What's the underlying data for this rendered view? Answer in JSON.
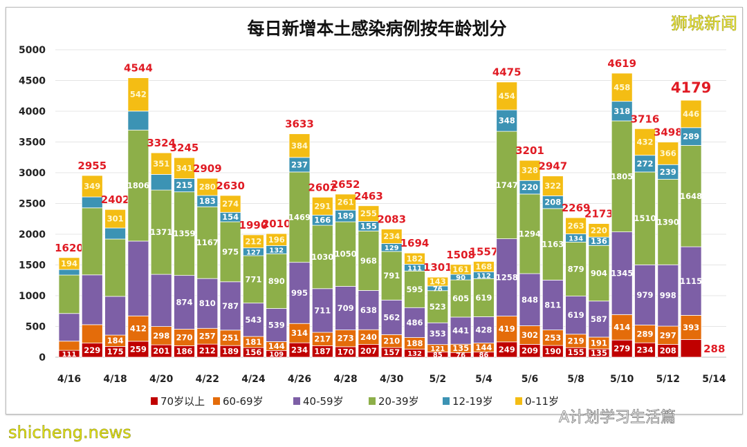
{
  "chart_data": {
    "type": "bar",
    "stacked": true,
    "title": "每日新增本土感染病例按年龄划分",
    "xlabel": "",
    "ylabel": "",
    "ylim": [
      0,
      5000
    ],
    "yticks": [
      0,
      500,
      1000,
      1500,
      2000,
      2500,
      3000,
      3500,
      4000,
      4500,
      5000
    ],
    "grid": true,
    "legend_position": "bottom",
    "categories": [
      "4/16",
      "4/17",
      "4/18",
      "4/19",
      "4/20",
      "4/21",
      "4/22",
      "4/23",
      "4/24",
      "4/25",
      "4/26",
      "4/27",
      "4/28",
      "4/29",
      "4/30",
      "5/1",
      "5/2",
      "5/3",
      "5/4",
      "5/5",
      "5/6",
      "5/7",
      "5/8",
      "5/9",
      "5/10",
      "5/11",
      "5/12",
      "5/13",
      "5/14"
    ],
    "tick_labels": [
      "4/16",
      "4/18",
      "4/20",
      "4/22",
      "4/24",
      "4/26",
      "4/28",
      "4/30",
      "5/2",
      "5/4",
      "5/6",
      "5/8",
      "5/10",
      "5/12",
      "5/14"
    ],
    "totals": [
      1620,
      2955,
      2402,
      4544,
      3324,
      3245,
      2909,
      2630,
      1990,
      2010,
      3633,
      2602,
      2652,
      2463,
      2083,
      1694,
      1301,
      1508,
      1557,
      4475,
      3201,
      2947,
      2269,
      2173,
      4619,
      3716,
      3498,
      4179,
      null
    ],
    "series": [
      {
        "name": "70岁以上",
        "color": "#c00000",
        "values": [
          111,
          229,
          175,
          259,
          201,
          186,
          212,
          189,
          156,
          109,
          234,
          187,
          170,
          207,
          157,
          132,
          85,
          76,
          86,
          249,
          209,
          190,
          155,
          135,
          279,
          234,
          208,
          288,
          null
        ]
      },
      {
        "name": "60-69岁",
        "color": "#e46c0a",
        "values": [
          150,
          300,
          184,
          412,
          298,
          270,
          257,
          251,
          181,
          144,
          314,
          217,
          273,
          240,
          210,
          188,
          121,
          135,
          144,
          419,
          302,
          253,
          219,
          191,
          414,
          289,
          297,
          393,
          null
        ]
      },
      {
        "name": "40-59岁",
        "color": "#7d5fa6",
        "values": [
          450,
          810,
          630,
          1217,
          848,
          874,
          810,
          787,
          543,
          539,
          995,
          711,
          709,
          638,
          562,
          486,
          353,
          441,
          428,
          1258,
          848,
          811,
          619,
          587,
          1345,
          979,
          998,
          1115,
          null
        ]
      },
      {
        "name": "20-39岁",
        "color": "#8daf49",
        "values": [
          625,
          1090,
          932,
          1806,
          1371,
          1359,
          1167,
          975,
          771,
          890,
          1469,
          1030,
          1050,
          968,
          791,
          595,
          523,
          605,
          619,
          1747,
          1294,
          1163,
          879,
          904,
          1805,
          1510,
          1390,
          1648,
          null
        ]
      },
      {
        "name": "12-19岁",
        "color": "#3c93b4",
        "values": [
          90,
          177,
          180,
          308,
          255,
          215,
          183,
          154,
          127,
          132,
          237,
          166,
          189,
          155,
          129,
          111,
          76,
          90,
          112,
          348,
          220,
          208,
          134,
          136,
          318,
          272,
          239,
          289,
          null
        ]
      },
      {
        "name": "0-11岁",
        "color": "#f4bd14",
        "values": [
          194,
          349,
          301,
          542,
          351,
          341,
          280,
          274,
          212,
          196,
          384,
          291,
          261,
          255,
          234,
          182,
          143,
          161,
          168,
          454,
          328,
          322,
          263,
          220,
          458,
          432,
          366,
          446,
          null
        ]
      }
    ],
    "hidden_labels": [
      [
        0,
        1
      ],
      [
        0,
        2
      ],
      [
        0,
        3
      ],
      [
        0,
        4
      ],
      [
        1,
        1
      ],
      [
        1,
        2
      ],
      [
        1,
        3
      ],
      [
        1,
        4
      ],
      [
        2,
        2
      ],
      [
        2,
        3
      ],
      [
        2,
        4
      ],
      [
        3,
        2
      ],
      [
        3,
        4
      ],
      [
        4,
        2
      ],
      [
        4,
        4
      ]
    ],
    "highlight_total_index": 27,
    "offset_label": [
      27,
      0
    ],
    "total_color": "#e01b24"
  },
  "watermarks": {
    "brand": "狮城新闻",
    "site": "shicheng.news",
    "account": "A计划学习生活篇"
  }
}
